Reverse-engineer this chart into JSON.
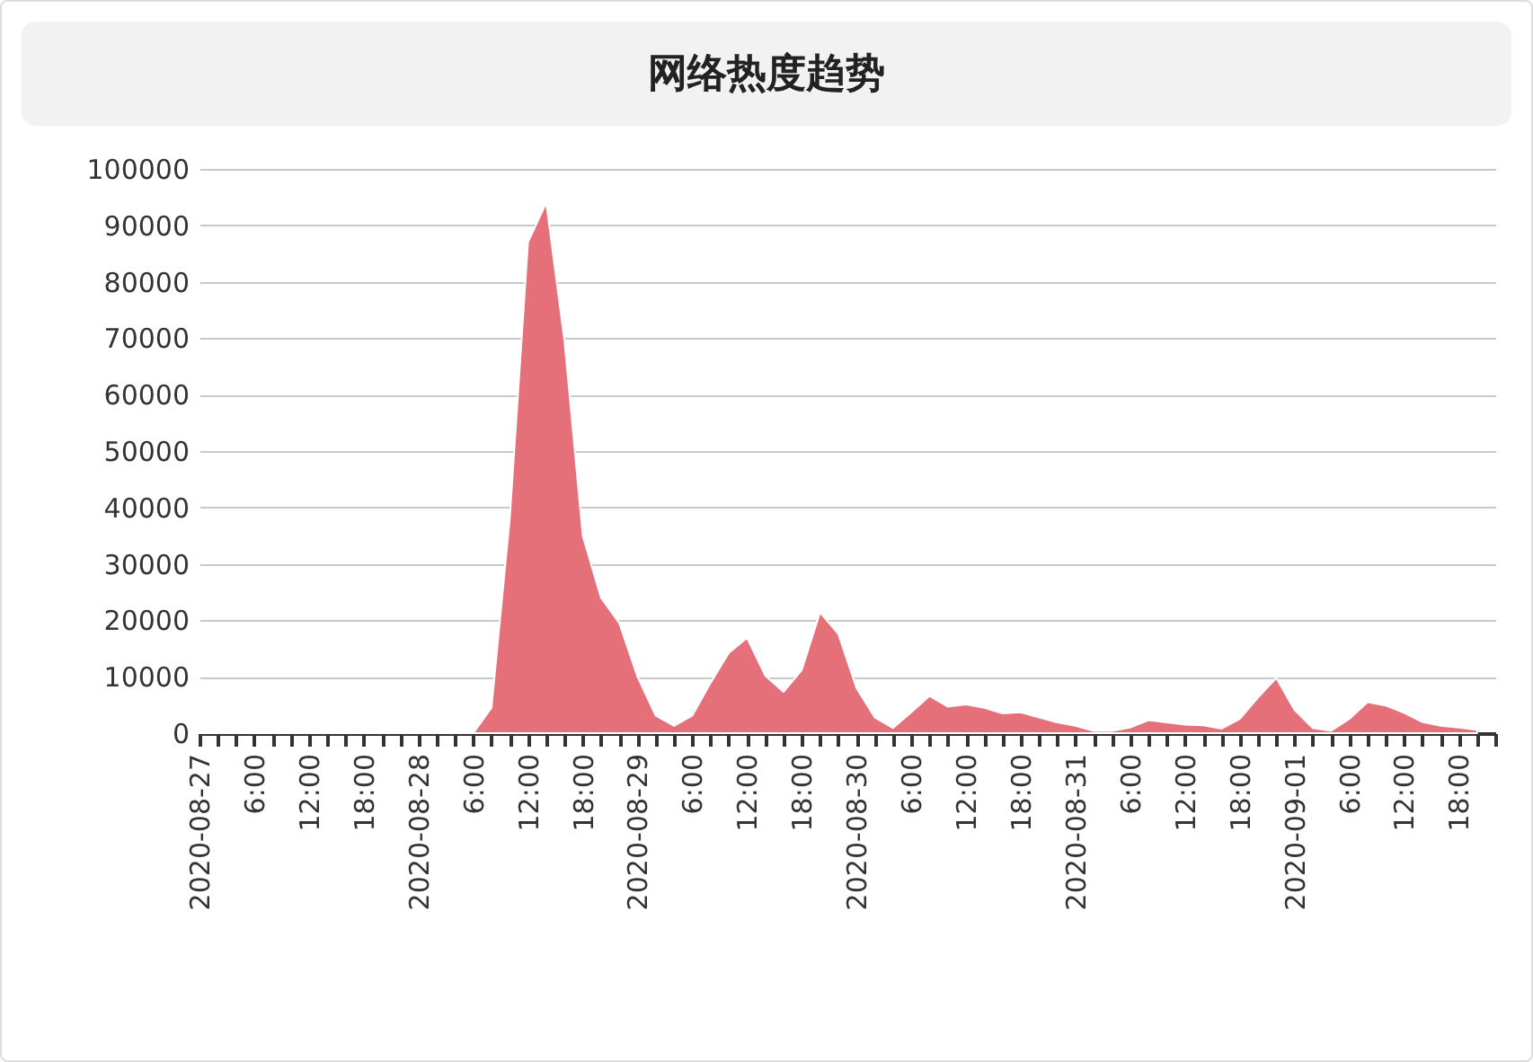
{
  "chart_data": {
    "type": "area",
    "title": "网络热度趋势",
    "color": "#e57079",
    "grid": "y",
    "ylim": [
      0,
      100000
    ],
    "yticks": [
      0,
      10000,
      20000,
      30000,
      40000,
      50000,
      60000,
      70000,
      80000,
      90000,
      100000
    ],
    "xlim": [
      "2020-08-27T00:00",
      "2020-09-01T22:00"
    ],
    "xticks": [
      {
        "value": "2020-08-27T00:00",
        "label": "2020-08-27"
      },
      {
        "value": "2020-08-27T02:00",
        "label": null
      },
      {
        "value": "2020-08-27T04:00",
        "label": null
      },
      {
        "value": "2020-08-27T06:00",
        "label": "6:00"
      },
      {
        "value": "2020-08-27T08:00",
        "label": null
      },
      {
        "value": "2020-08-27T10:00",
        "label": null
      },
      {
        "value": "2020-08-27T12:00",
        "label": "12:00"
      },
      {
        "value": "2020-08-27T14:00",
        "label": null
      },
      {
        "value": "2020-08-27T16:00",
        "label": null
      },
      {
        "value": "2020-08-27T18:00",
        "label": "18:00"
      },
      {
        "value": "2020-08-27T20:00",
        "label": null
      },
      {
        "value": "2020-08-27T22:00",
        "label": null
      },
      {
        "value": "2020-08-28T00:00",
        "label": "2020-08-28"
      },
      {
        "value": "2020-08-28T02:00",
        "label": null
      },
      {
        "value": "2020-08-28T04:00",
        "label": null
      },
      {
        "value": "2020-08-28T06:00",
        "label": "6:00"
      },
      {
        "value": "2020-08-28T08:00",
        "label": null
      },
      {
        "value": "2020-08-28T10:00",
        "label": null
      },
      {
        "value": "2020-08-28T12:00",
        "label": "12:00"
      },
      {
        "value": "2020-08-28T14:00",
        "label": null
      },
      {
        "value": "2020-08-28T16:00",
        "label": null
      },
      {
        "value": "2020-08-28T18:00",
        "label": "18:00"
      },
      {
        "value": "2020-08-28T20:00",
        "label": null
      },
      {
        "value": "2020-08-28T22:00",
        "label": null
      },
      {
        "value": "2020-08-29T00:00",
        "label": "2020-08-29"
      },
      {
        "value": "2020-08-29T02:00",
        "label": null
      },
      {
        "value": "2020-08-29T04:00",
        "label": null
      },
      {
        "value": "2020-08-29T06:00",
        "label": "6:00"
      },
      {
        "value": "2020-08-29T08:00",
        "label": null
      },
      {
        "value": "2020-08-29T10:00",
        "label": null
      },
      {
        "value": "2020-08-29T12:00",
        "label": "12:00"
      },
      {
        "value": "2020-08-29T14:00",
        "label": null
      },
      {
        "value": "2020-08-29T16:00",
        "label": null
      },
      {
        "value": "2020-08-29T18:00",
        "label": "18:00"
      },
      {
        "value": "2020-08-29T20:00",
        "label": null
      },
      {
        "value": "2020-08-29T22:00",
        "label": null
      },
      {
        "value": "2020-08-30T00:00",
        "label": "2020-08-30"
      },
      {
        "value": "2020-08-30T02:00",
        "label": null
      },
      {
        "value": "2020-08-30T04:00",
        "label": null
      },
      {
        "value": "2020-08-30T06:00",
        "label": "6:00"
      },
      {
        "value": "2020-08-30T08:00",
        "label": null
      },
      {
        "value": "2020-08-30T10:00",
        "label": null
      },
      {
        "value": "2020-08-30T12:00",
        "label": "12:00"
      },
      {
        "value": "2020-08-30T14:00",
        "label": null
      },
      {
        "value": "2020-08-30T16:00",
        "label": null
      },
      {
        "value": "2020-08-30T18:00",
        "label": "18:00"
      },
      {
        "value": "2020-08-30T20:00",
        "label": null
      },
      {
        "value": "2020-08-30T22:00",
        "label": null
      },
      {
        "value": "2020-08-31T00:00",
        "label": "2020-08-31"
      },
      {
        "value": "2020-08-31T02:00",
        "label": null
      },
      {
        "value": "2020-08-31T04:00",
        "label": null
      },
      {
        "value": "2020-08-31T06:00",
        "label": "6:00"
      },
      {
        "value": "2020-08-31T08:00",
        "label": null
      },
      {
        "value": "2020-08-31T10:00",
        "label": null
      },
      {
        "value": "2020-08-31T12:00",
        "label": "12:00"
      },
      {
        "value": "2020-08-31T14:00",
        "label": null
      },
      {
        "value": "2020-08-31T16:00",
        "label": null
      },
      {
        "value": "2020-08-31T18:00",
        "label": "18:00"
      },
      {
        "value": "2020-08-31T20:00",
        "label": null
      },
      {
        "value": "2020-08-31T22:00",
        "label": null
      },
      {
        "value": "2020-09-01T00:00",
        "label": "2020-09-01"
      },
      {
        "value": "2020-09-01T02:00",
        "label": null
      },
      {
        "value": "2020-09-01T04:00",
        "label": null
      },
      {
        "value": "2020-09-01T06:00",
        "label": "6:00"
      },
      {
        "value": "2020-09-01T08:00",
        "label": null
      },
      {
        "value": "2020-09-01T10:00",
        "label": null
      },
      {
        "value": "2020-09-01T12:00",
        "label": "12:00"
      },
      {
        "value": "2020-09-01T14:00",
        "label": null
      },
      {
        "value": "2020-09-01T16:00",
        "label": null
      },
      {
        "value": "2020-09-01T18:00",
        "label": "18:00"
      },
      {
        "value": "2020-09-01T20:00",
        "label": null
      },
      {
        "value": "2020-09-01T22:00",
        "label": null
      }
    ],
    "x": [
      "2020-08-27T00:00",
      "2020-08-27T02:00",
      "2020-08-27T04:00",
      "2020-08-27T06:00",
      "2020-08-27T08:00",
      "2020-08-27T10:00",
      "2020-08-27T12:00",
      "2020-08-27T14:00",
      "2020-08-27T16:00",
      "2020-08-27T18:00",
      "2020-08-27T20:00",
      "2020-08-27T22:00",
      "2020-08-28T00:00",
      "2020-08-28T02:00",
      "2020-08-28T04:00",
      "2020-08-28T06:00",
      "2020-08-28T08:00",
      "2020-08-28T10:00",
      "2020-08-28T12:00",
      "2020-08-28T14:00",
      "2020-08-28T16:00",
      "2020-08-28T18:00",
      "2020-08-28T20:00",
      "2020-08-28T22:00",
      "2020-08-29T00:00",
      "2020-08-29T02:00",
      "2020-08-29T04:00",
      "2020-08-29T06:00",
      "2020-08-29T08:00",
      "2020-08-29T10:00",
      "2020-08-29T12:00",
      "2020-08-29T14:00",
      "2020-08-29T16:00",
      "2020-08-29T18:00",
      "2020-08-29T20:00",
      "2020-08-29T22:00",
      "2020-08-30T00:00",
      "2020-08-30T02:00",
      "2020-08-30T04:00",
      "2020-08-30T06:00",
      "2020-08-30T08:00",
      "2020-08-30T10:00",
      "2020-08-30T12:00",
      "2020-08-30T14:00",
      "2020-08-30T16:00",
      "2020-08-30T18:00",
      "2020-08-30T20:00",
      "2020-08-30T22:00",
      "2020-08-31T00:00",
      "2020-08-31T02:00",
      "2020-08-31T04:00",
      "2020-08-31T06:00",
      "2020-08-31T08:00",
      "2020-08-31T10:00",
      "2020-08-31T12:00",
      "2020-08-31T14:00",
      "2020-08-31T16:00",
      "2020-08-31T18:00",
      "2020-08-31T20:00",
      "2020-08-31T22:00",
      "2020-09-01T00:00",
      "2020-09-01T02:00",
      "2020-09-01T04:00",
      "2020-09-01T06:00",
      "2020-09-01T08:00",
      "2020-09-01T10:00",
      "2020-09-01T12:00",
      "2020-09-01T14:00",
      "2020-09-01T16:00",
      "2020-09-01T18:00",
      "2020-09-01T20:00"
    ],
    "values": [
      0,
      0,
      0,
      0,
      0,
      0,
      0,
      0,
      0,
      0,
      0,
      0,
      0,
      0,
      0,
      0,
      4500,
      38000,
      87000,
      94000,
      69500,
      35000,
      24000,
      19500,
      10000,
      3100,
      1300,
      3100,
      8900,
      14200,
      16900,
      10200,
      7300,
      11200,
      21400,
      17600,
      8000,
      2800,
      900,
      3700,
      6600,
      4700,
      5100,
      4500,
      3500,
      3700,
      2800,
      1900,
      1300,
      400,
      400,
      1000,
      2300,
      1900,
      1500,
      1400,
      800,
      2500,
      6300,
      9800,
      4100,
      900,
      400,
      2500,
      5500,
      4900,
      3600,
      2000,
      1300,
      1000,
      600
    ]
  }
}
